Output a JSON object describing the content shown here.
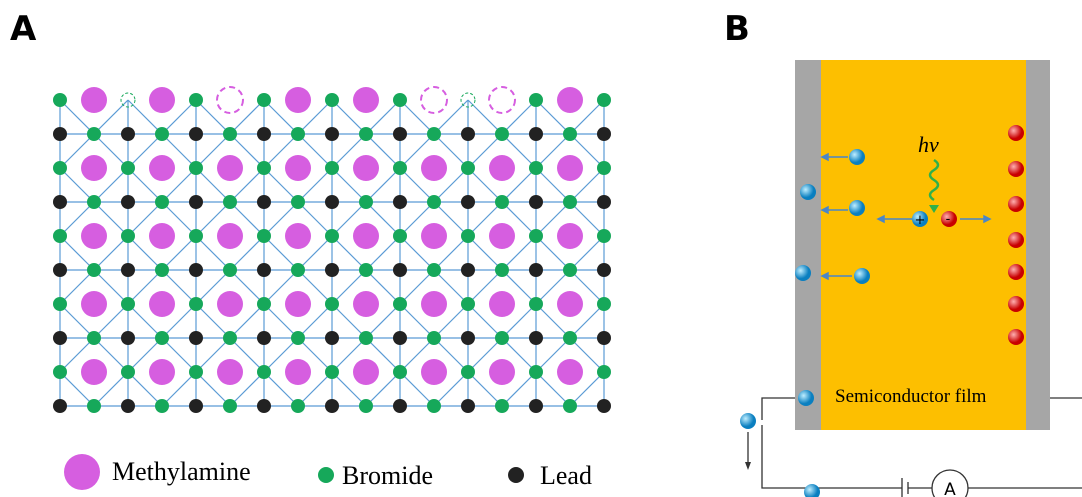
{
  "panels": [
    {
      "label": "A"
    },
    {
      "label": "B"
    }
  ],
  "legend": [
    {
      "label": "Methylamine"
    },
    {
      "label": "Bromide"
    },
    {
      "label": "Lead"
    }
  ],
  "device": {
    "photon": "hv",
    "film": "Semiconductor film",
    "ammeter": "A",
    "hole": "+",
    "electron": "-"
  }
}
